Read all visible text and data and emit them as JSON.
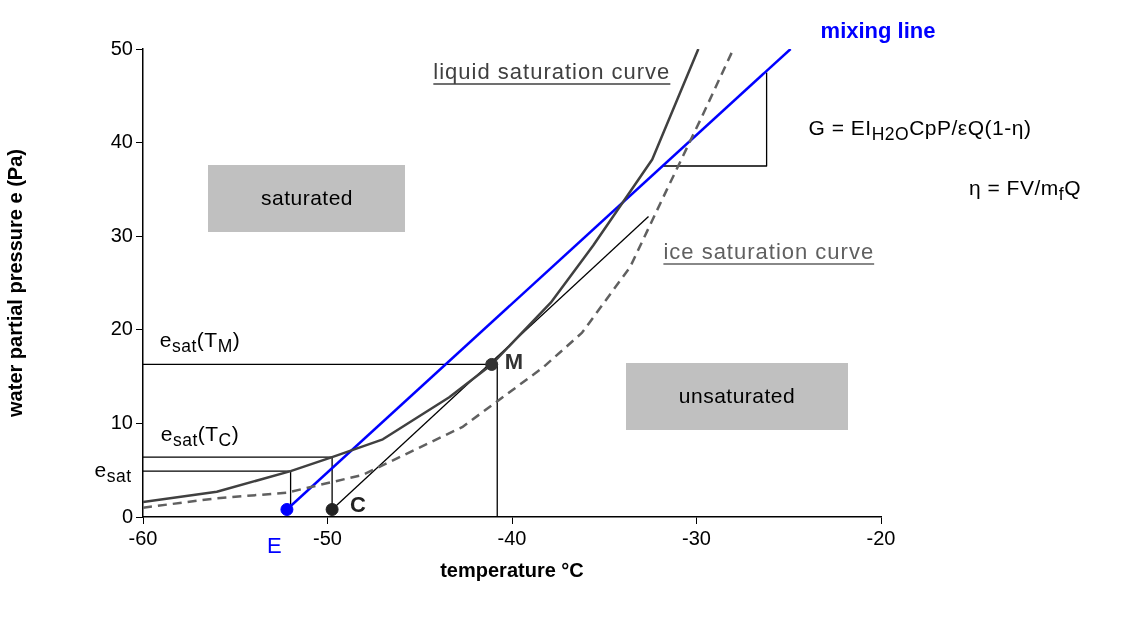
{
  "chart_data": {
    "type": "line",
    "xlabel": "temperature °C",
    "ylabel": "water partial pressure e (Pa)",
    "xlim": [
      -60,
      -20
    ],
    "xticks": [
      -60,
      -50,
      -40,
      -30,
      -20
    ],
    "ylim": [
      0,
      50
    ],
    "yticks": [
      0,
      10,
      20,
      30,
      40,
      50
    ],
    "grid": false,
    "legend": false,
    "series": [
      {
        "name": "liquid saturation curve",
        "type": "line",
        "color": "#404040",
        "line_style": "solid",
        "marker": "none",
        "x": [
          -60,
          -56,
          -52,
          -49.75,
          -47,
          -43.4,
          -41.1,
          -37.9,
          -35.6,
          -32.4,
          -29.9
        ],
        "values": [
          1.6,
          2.7,
          4.9,
          6.4,
          8.3,
          12.8,
          16.3,
          22.9,
          29,
          38.2,
          50
        ]
      },
      {
        "name": "ice saturation curve",
        "type": "line",
        "color": "#606060",
        "line_style": "dashed",
        "marker": "none",
        "x": [
          -60,
          -56,
          -52.2,
          -48.1,
          -42.7,
          -38.3,
          -36.2,
          -33.6,
          -31.6,
          -29.7,
          -28
        ],
        "values": [
          1.0,
          2.0,
          2.6,
          4.5,
          9.6,
          16,
          19.7,
          26.7,
          35,
          42.8,
          50
        ]
      },
      {
        "name": "mixing line",
        "type": "line",
        "color": "#0000ff",
        "line_style": "solid",
        "marker": "none",
        "x": [
          -52.2,
          -24.9
        ],
        "values": [
          0.8,
          50
        ]
      },
      {
        "type": "line",
        "color": "#000000",
        "line_style": "solid",
        "marker": "none",
        "x": [
          -49.75,
          -32.6
        ],
        "values": [
          0.8,
          32.1
        ]
      },
      {
        "type": "line",
        "color": "#000000",
        "line_style": "solid",
        "marker": "none",
        "x": [
          -60,
          -40.8
        ],
        "values": [
          16.3,
          16.3
        ]
      },
      {
        "type": "line",
        "color": "#000000",
        "line_style": "solid",
        "marker": "none",
        "x": [
          -40.8,
          -40.8
        ],
        "values": [
          0,
          16.3
        ]
      },
      {
        "type": "line",
        "color": "#000000",
        "line_style": "solid",
        "marker": "none",
        "x": [
          -60,
          -49.75
        ],
        "values": [
          6.4,
          6.4
        ]
      },
      {
        "type": "line",
        "color": "#000000",
        "line_style": "solid",
        "marker": "none",
        "x": [
          -49.75,
          -49.75
        ],
        "values": [
          0.8,
          6.4
        ]
      },
      {
        "type": "line",
        "color": "#000000",
        "line_style": "solid",
        "marker": "none",
        "x": [
          -60,
          -52
        ],
        "values": [
          4.9,
          4.9
        ]
      },
      {
        "type": "line",
        "color": "#000000",
        "line_style": "solid",
        "marker": "none",
        "x": [
          -52,
          -52
        ],
        "values": [
          0.8,
          4.9
        ]
      },
      {
        "type": "line",
        "color": "#000000",
        "line_style": "solid",
        "marker": "none",
        "x": [
          -31.8,
          -26.2,
          -26.2
        ],
        "values": [
          37.5,
          37.5,
          47.5
        ]
      },
      {
        "name": "E",
        "type": "scatter",
        "color": "#0000ff",
        "marker": "circle",
        "x": [
          -52.2
        ],
        "values": [
          0.8
        ]
      },
      {
        "name": "C",
        "type": "scatter",
        "color": "#222222",
        "marker": "circle",
        "x": [
          -49.75
        ],
        "values": [
          0.8
        ]
      },
      {
        "name": "M",
        "type": "scatter",
        "color": "#333333",
        "marker": "circle",
        "x": [
          -41.1
        ],
        "values": [
          16.3
        ]
      }
    ],
    "annotations": [
      "e$_{sat}$(T$_{M}$)",
      "e$_{sat}$(T$_{C}$)",
      "e$_{sat}$",
      "G = EI$_{H2O}$CpP/εQ(1-η)",
      "saturated",
      "unsaturated",
      "η = FV/m$_{f}$Q"
    ]
  }
}
